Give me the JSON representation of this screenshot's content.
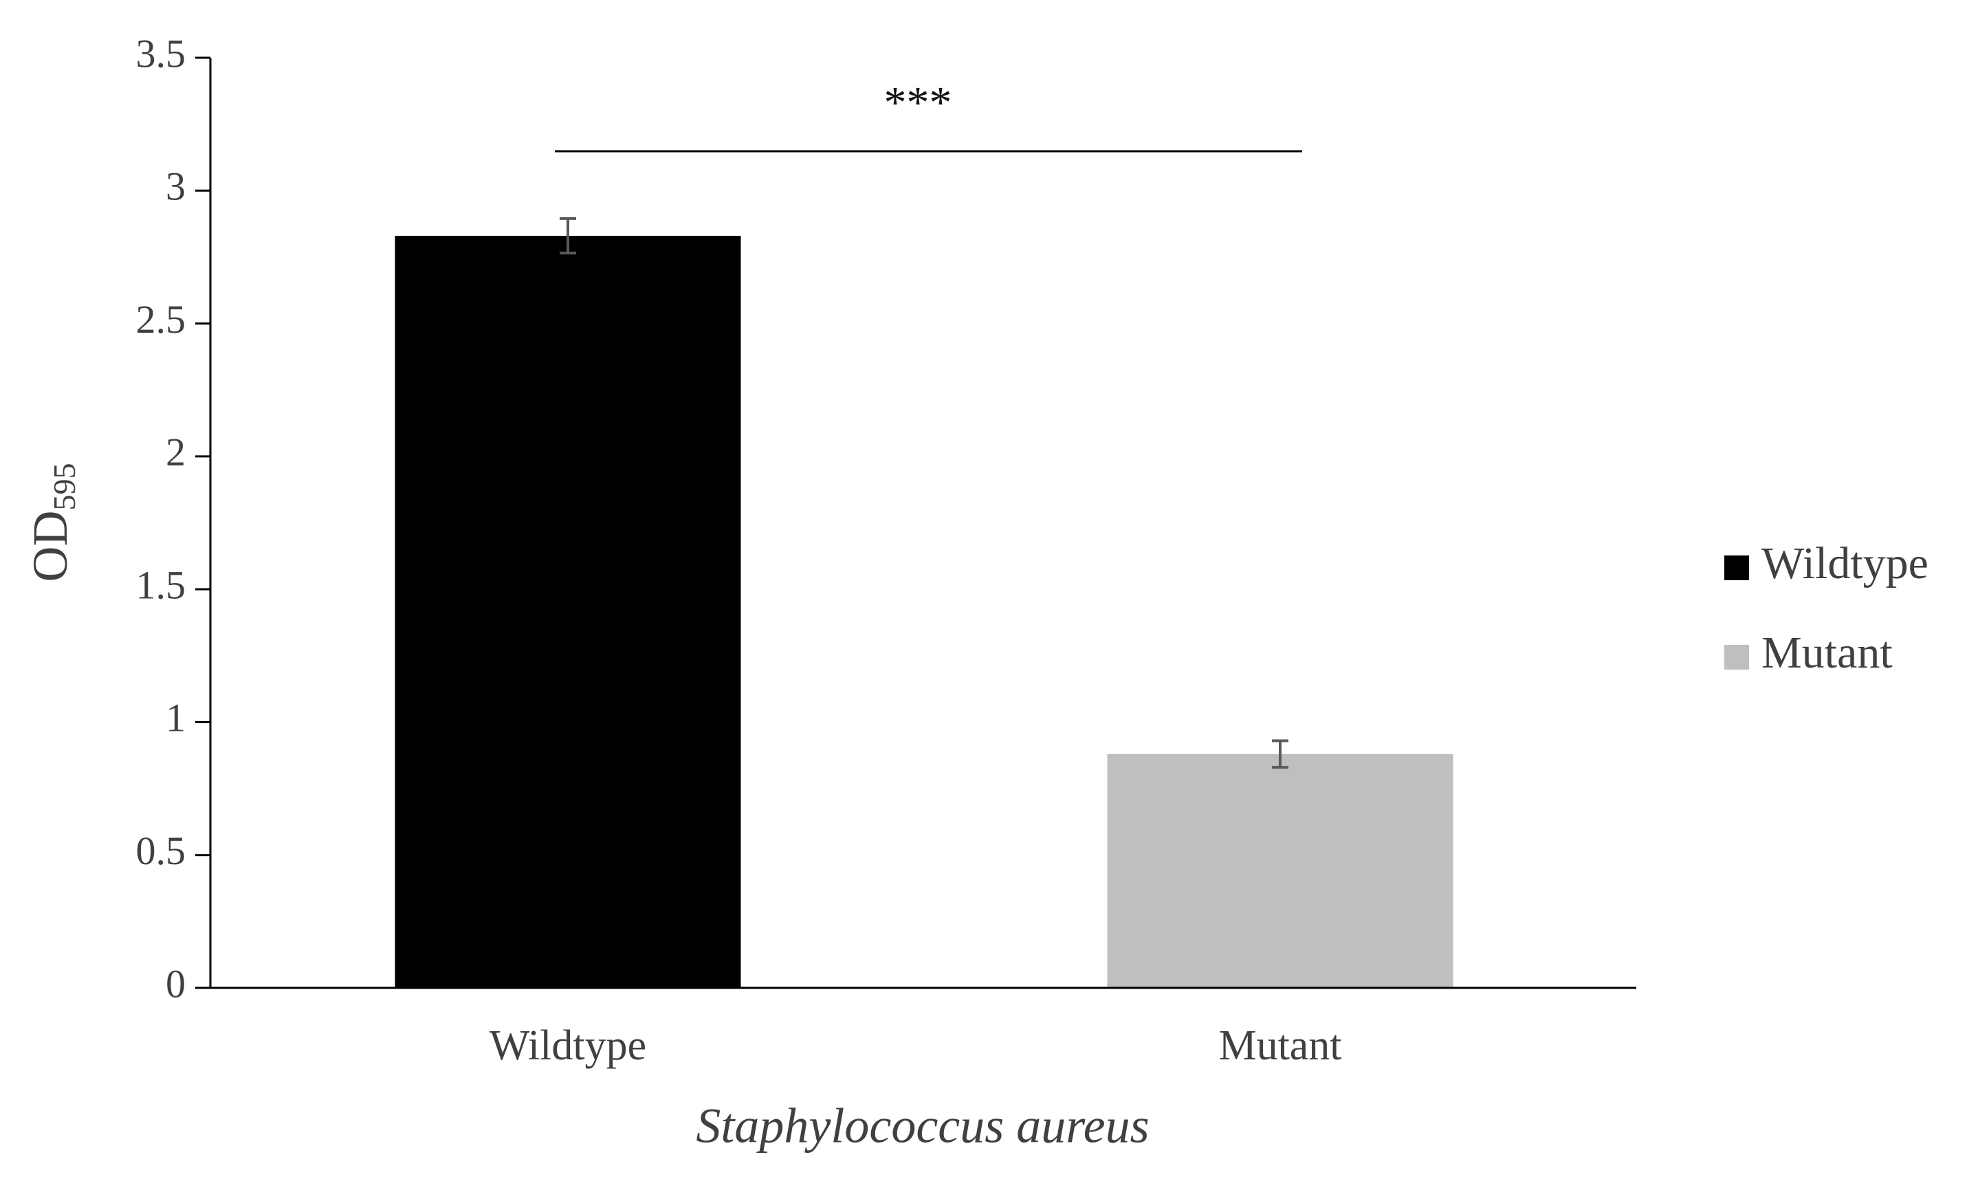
{
  "chart_data": {
    "type": "bar",
    "y_label": "OD",
    "y_label_subscript": "595",
    "x_label": "Staphylococcus aureus",
    "annotation": "***",
    "categories": [
      "Wildtype",
      "Mutant"
    ],
    "series": [
      {
        "name": "Wildtype",
        "color": "#000000",
        "values": [
          2.83,
          null
        ],
        "errors": [
          0.065,
          null
        ]
      },
      {
        "name": "Mutant",
        "color": "#bfbfbf",
        "values": [
          null,
          0.88
        ],
        "errors": [
          null,
          0.05
        ]
      }
    ],
    "ylim": [
      0,
      3.5
    ],
    "yticks": [
      0,
      0.5,
      1,
      1.5,
      2,
      2.5,
      3,
      3.5
    ],
    "grid": false,
    "legend": "right"
  }
}
